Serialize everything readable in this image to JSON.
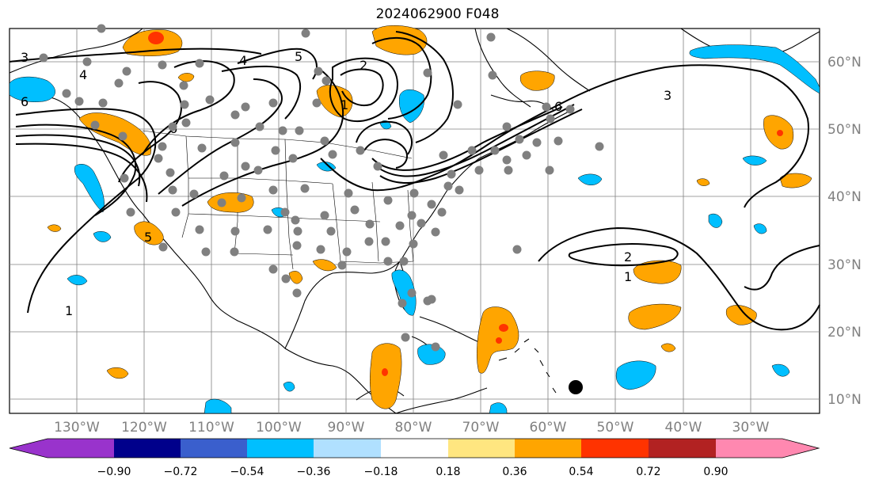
{
  "title": "2024062900 F048",
  "longitude_ticks": [
    "130°W",
    "120°W",
    "110°W",
    "100°W",
    "90°W",
    "80°W",
    "70°W",
    "60°W",
    "50°W",
    "40°W",
    "30°W"
  ],
  "latitude_ticks": [
    "60°N",
    "50°N",
    "40°N",
    "30°N",
    "20°N",
    "10°N"
  ],
  "contour_labels": [
    "3",
    "4",
    "5",
    "2",
    "1",
    "6",
    "6",
    "3",
    "2",
    "1",
    "1",
    "6",
    "5",
    "4",
    "1"
  ],
  "colorbar": {
    "tick_labels": [
      "−0.90",
      "−0.72",
      "−0.54",
      "−0.36",
      "−0.18",
      "0.18",
      "0.36",
      "0.54",
      "0.72",
      "0.90"
    ],
    "colors": [
      "#9933cc",
      "#00008b",
      "#3a5fcd",
      "#00bfff",
      "#b0e0ff",
      "#ffffff",
      "#ffe680",
      "#ffa500",
      "#ff3300",
      "#b22222",
      "#ff88b0"
    ]
  },
  "colors": {
    "positive_fill": "#ffa500",
    "negative_fill": "#00bfff",
    "contour": "#000000",
    "station": "#808080",
    "marker": "#000000",
    "grid": "#808080"
  }
}
